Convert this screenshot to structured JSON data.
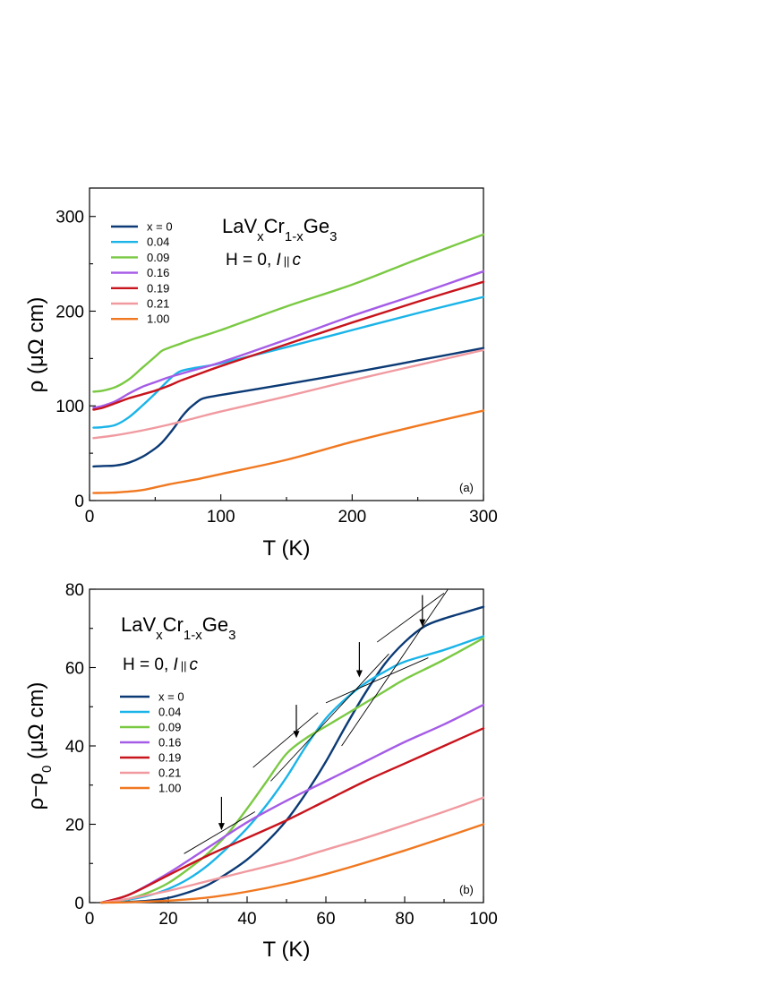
{
  "chart_data": [
    {
      "id": "a",
      "type": "line",
      "panel_label": "(a)",
      "compound": {
        "base1": "LaV",
        "sub1": "x",
        "base2": "Cr",
        "sub2": "1-x",
        "base3": "Ge",
        "sub3": "3"
      },
      "condition": {
        "prefix": "H = 0, ",
        "italic": "I",
        "parallel": "||",
        "suffix": "c"
      },
      "xlabel": "T (K)",
      "ylabel": "ρ (μΩ cm)",
      "xlim": [
        0,
        300
      ],
      "ylim": [
        0,
        330
      ],
      "xticks": [
        0,
        100,
        200,
        300
      ],
      "yticks": [
        0,
        100,
        200,
        300
      ],
      "legend_position": "top-left",
      "series": [
        {
          "name": "x = 0",
          "color": "#0b3a75",
          "points": [
            [
              3,
              36
            ],
            [
              10,
              36.5
            ],
            [
              20,
              37
            ],
            [
              30,
              40
            ],
            [
              40,
              46
            ],
            [
              50,
              55
            ],
            [
              55,
              61
            ],
            [
              60,
              69
            ],
            [
              65,
              78
            ],
            [
              70,
              88
            ],
            [
              75,
              96
            ],
            [
              80,
              102
            ],
            [
              85,
              107
            ],
            [
              90,
              109
            ],
            [
              100,
              111.5
            ],
            [
              120,
              116
            ],
            [
              150,
              123
            ],
            [
              200,
              135
            ],
            [
              250,
              148
            ],
            [
              300,
              161
            ]
          ]
        },
        {
          "name": "0.04",
          "color": "#1ab4e8",
          "points": [
            [
              3,
              77
            ],
            [
              10,
              77.5
            ],
            [
              20,
              80
            ],
            [
              30,
              88
            ],
            [
              40,
              100
            ],
            [
              50,
              113
            ],
            [
              55,
              120
            ],
            [
              60,
              127
            ],
            [
              65,
              133
            ],
            [
              70,
              137
            ],
            [
              80,
              140
            ],
            [
              100,
              145
            ],
            [
              150,
              162
            ],
            [
              200,
              180
            ],
            [
              250,
              198
            ],
            [
              300,
              215
            ]
          ]
        },
        {
          "name": "0.09",
          "color": "#7ac943",
          "points": [
            [
              3,
              115
            ],
            [
              10,
              116
            ],
            [
              20,
              120
            ],
            [
              30,
              128
            ],
            [
              40,
              140
            ],
            [
              50,
              152
            ],
            [
              55,
              158
            ],
            [
              60,
              161
            ],
            [
              70,
              166
            ],
            [
              80,
              171
            ],
            [
              100,
              180
            ],
            [
              150,
              205
            ],
            [
              200,
              228
            ],
            [
              250,
              255
            ],
            [
              300,
              281
            ]
          ]
        },
        {
          "name": "0.16",
          "color": "#a55ce6",
          "points": [
            [
              3,
              98
            ],
            [
              10,
              100
            ],
            [
              20,
              105
            ],
            [
              30,
              113
            ],
            [
              40,
              120
            ],
            [
              50,
              125
            ],
            [
              60,
              130
            ],
            [
              70,
              134
            ],
            [
              80,
              138
            ],
            [
              100,
              146
            ],
            [
              150,
              170
            ],
            [
              200,
              195
            ],
            [
              250,
              218
            ],
            [
              300,
              242
            ]
          ]
        },
        {
          "name": "0.19",
          "color": "#c8141c",
          "points": [
            [
              3,
              96
            ],
            [
              10,
              98
            ],
            [
              20,
              103
            ],
            [
              30,
              108
            ],
            [
              40,
              112
            ],
            [
              50,
              116
            ],
            [
              60,
              121
            ],
            [
              70,
              127
            ],
            [
              80,
              132
            ],
            [
              100,
              142
            ],
            [
              150,
              165
            ],
            [
              200,
              188
            ],
            [
              250,
              210
            ],
            [
              300,
              231
            ]
          ]
        },
        {
          "name": "0.21",
          "color": "#f09aa0",
          "points": [
            [
              3,
              66
            ],
            [
              20,
              69
            ],
            [
              40,
              74
            ],
            [
              60,
              80
            ],
            [
              80,
              87
            ],
            [
              100,
              94
            ],
            [
              150,
              110
            ],
            [
              200,
              127
            ],
            [
              250,
              143
            ],
            [
              300,
              159
            ]
          ]
        },
        {
          "name": "1.00",
          "color": "#f07820",
          "points": [
            [
              3,
              8
            ],
            [
              20,
              8.5
            ],
            [
              40,
              11
            ],
            [
              60,
              17
            ],
            [
              80,
              22
            ],
            [
              100,
              28
            ],
            [
              150,
              43
            ],
            [
              200,
              62
            ],
            [
              250,
              79
            ],
            [
              300,
              95
            ]
          ]
        }
      ]
    },
    {
      "id": "b",
      "type": "line",
      "panel_label": "(b)",
      "compound": {
        "base1": "LaV",
        "sub1": "x",
        "base2": "Cr",
        "sub2": "1-x",
        "base3": "Ge",
        "sub3": "3"
      },
      "condition": {
        "prefix": "H = 0, ",
        "italic": "I",
        "parallel": "||",
        "suffix": "c"
      },
      "xlabel": "T (K)",
      "ylabel": "ρ−ρ",
      "ylabel_sub": "0",
      "ylabel_tail": " (μΩ cm)",
      "xlim": [
        0,
        100
      ],
      "ylim": [
        0,
        80
      ],
      "xticks": [
        0,
        20,
        40,
        60,
        80,
        100
      ],
      "yticks": [
        0,
        20,
        40,
        60,
        80
      ],
      "legend_position": "middle-left",
      "series": [
        {
          "name": "x = 0",
          "color": "#0b3a75",
          "points": [
            [
              3,
              0
            ],
            [
              10,
              0.2
            ],
            [
              15,
              0.5
            ],
            [
              20,
              1.2
            ],
            [
              25,
              2.6
            ],
            [
              30,
              4.5
            ],
            [
              35,
              7.5
            ],
            [
              40,
              11
            ],
            [
              45,
              15.5
            ],
            [
              50,
              21
            ],
            [
              55,
              28
            ],
            [
              60,
              36
            ],
            [
              65,
              45
            ],
            [
              70,
              53.5
            ],
            [
              75,
              61
            ],
            [
              80,
              66.5
            ],
            [
              85,
              70.5
            ],
            [
              90,
              72.5
            ],
            [
              95,
              74
            ],
            [
              100,
              75.5
            ]
          ]
        },
        {
          "name": "0.04",
          "color": "#1ab4e8",
          "points": [
            [
              3,
              0
            ],
            [
              10,
              0.8
            ],
            [
              15,
              1.8
            ],
            [
              20,
              3.5
            ],
            [
              25,
              6
            ],
            [
              30,
              9.5
            ],
            [
              35,
              14
            ],
            [
              40,
              19
            ],
            [
              45,
              25
            ],
            [
              50,
              32
            ],
            [
              55,
              40
            ],
            [
              60,
              47
            ],
            [
              65,
              52
            ],
            [
              70,
              56
            ],
            [
              75,
              59
            ],
            [
              80,
              61.5
            ],
            [
              90,
              64.5
            ],
            [
              100,
              68
            ]
          ]
        },
        {
          "name": "0.09",
          "color": "#7ac943",
          "points": [
            [
              3,
              0
            ],
            [
              10,
              1
            ],
            [
              15,
              2.6
            ],
            [
              20,
              5
            ],
            [
              25,
              8.5
            ],
            [
              30,
              12.5
            ],
            [
              35,
              17.5
            ],
            [
              40,
              24
            ],
            [
              45,
              31
            ],
            [
              50,
              38
            ],
            [
              55,
              42
            ],
            [
              60,
              45
            ],
            [
              65,
              48
            ],
            [
              70,
              51
            ],
            [
              75,
              54
            ],
            [
              80,
              57
            ],
            [
              90,
              62
            ],
            [
              100,
              67.5
            ]
          ]
        },
        {
          "name": "0.16",
          "color": "#a55ce6",
          "points": [
            [
              3,
              0
            ],
            [
              10,
              2
            ],
            [
              20,
              7.5
            ],
            [
              30,
              14
            ],
            [
              40,
              20.5
            ],
            [
              50,
              26
            ],
            [
              60,
              31
            ],
            [
              70,
              36
            ],
            [
              80,
              41
            ],
            [
              90,
              45.5
            ],
            [
              100,
              50.5
            ]
          ]
        },
        {
          "name": "0.19",
          "color": "#c8141c",
          "points": [
            [
              3,
              0
            ],
            [
              10,
              2
            ],
            [
              20,
              7
            ],
            [
              30,
              12
            ],
            [
              40,
              16.5
            ],
            [
              50,
              21
            ],
            [
              60,
              26
            ],
            [
              70,
              31
            ],
            [
              80,
              35.5
            ],
            [
              90,
              40
            ],
            [
              100,
              44.5
            ]
          ]
        },
        {
          "name": "0.21",
          "color": "#f09aa0",
          "points": [
            [
              3,
              0
            ],
            [
              10,
              1
            ],
            [
              20,
              3
            ],
            [
              30,
              5.5
            ],
            [
              40,
              8
            ],
            [
              50,
              10.5
            ],
            [
              60,
              13.5
            ],
            [
              70,
              16.5
            ],
            [
              80,
              19.8
            ],
            [
              90,
              23.2
            ],
            [
              100,
              26.8
            ]
          ]
        },
        {
          "name": "1.00",
          "color": "#f07820",
          "points": [
            [
              3,
              0
            ],
            [
              10,
              0.1
            ],
            [
              20,
              0.5
            ],
            [
              30,
              1.3
            ],
            [
              40,
              2.8
            ],
            [
              50,
              4.8
            ],
            [
              60,
              7.3
            ],
            [
              70,
              10.2
            ],
            [
              80,
              13.3
            ],
            [
              90,
              16.6
            ],
            [
              100,
              20
            ]
          ]
        }
      ],
      "guide_lines": [
        [
          [
            24,
            12.5
          ],
          [
            42,
            23.2
          ]
        ],
        [
          [
            41.5,
            34.5
          ],
          [
            58,
            48.5
          ]
        ],
        [
          [
            60,
            51
          ],
          [
            86,
            62.5
          ]
        ],
        [
          [
            73,
            66.5
          ],
          [
            90,
            79
          ]
        ],
        [
          [
            46,
            31
          ],
          [
            76,
            63.5
          ]
        ],
        [
          [
            64,
            40
          ],
          [
            91,
            80
          ]
        ]
      ],
      "arrows": [
        {
          "x": 33.5,
          "y_top": 27,
          "y_tip": 18.5
        },
        {
          "x": 52.5,
          "y_top": 50.5,
          "y_tip": 42
        },
        {
          "x": 68.5,
          "y_top": 66.5,
          "y_tip": 57.5
        },
        {
          "x": 84.5,
          "y_top": 78.5,
          "y_tip": 70.5
        }
      ]
    }
  ]
}
